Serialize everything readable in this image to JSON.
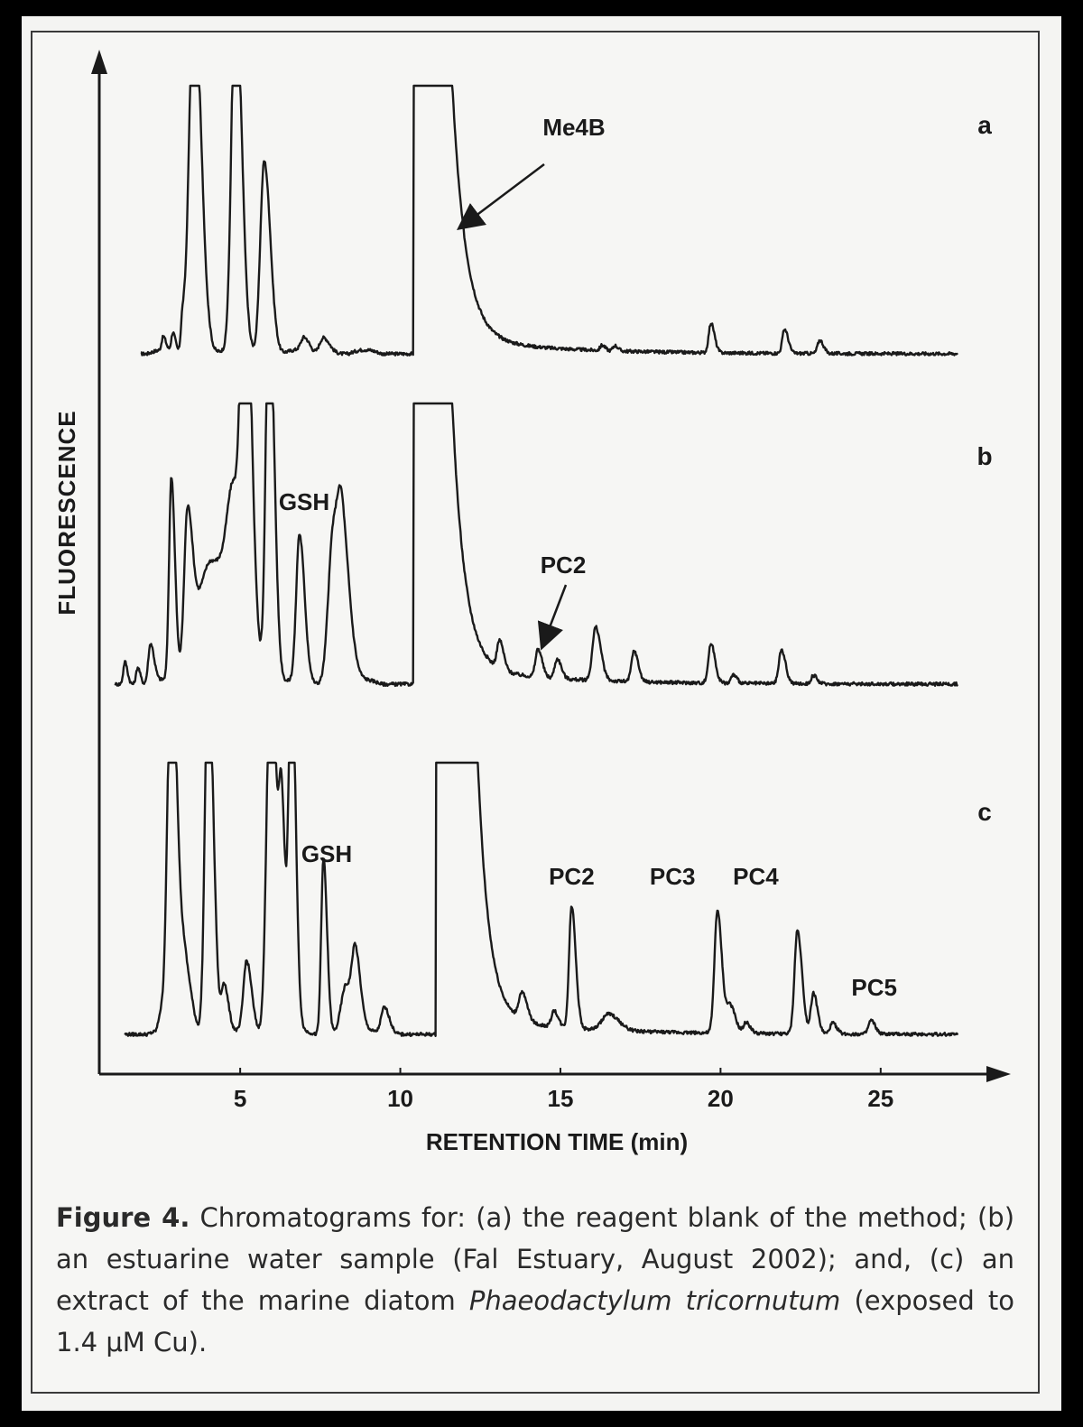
{
  "chart_data": {
    "type": "line",
    "ylabel": "FLUORESCENCE",
    "xlabel": "RETENTION TIME (min)",
    "xticks": [
      5,
      10,
      15,
      20,
      25
    ],
    "xlim": [
      0.6,
      28.5
    ],
    "panels": [
      {
        "id": "a",
        "label": "a",
        "x_start": 1.9,
        "x_end": 27.4,
        "baseline": 0.0,
        "peaks": [
          {
            "x": 2.6,
            "h": 0.05,
            "w": 0.05
          },
          {
            "x": 2.9,
            "h": 0.07,
            "w": 0.05
          },
          {
            "x": 3.2,
            "h": 0.12,
            "w": 0.05
          },
          {
            "x": 3.55,
            "h": 1.0,
            "w": 0.14,
            "clip": true
          },
          {
            "x": 4.85,
            "h": 1.0,
            "w": 0.12,
            "clip": true
          },
          {
            "x": 5.75,
            "h": 0.72,
            "w": 0.12
          },
          {
            "x": 7.0,
            "h": 0.05,
            "w": 0.1
          },
          {
            "x": 7.6,
            "h": 0.06,
            "w": 0.12
          },
          {
            "x": 16.3,
            "h": 0.02,
            "w": 0.06
          },
          {
            "x": 16.7,
            "h": 0.02,
            "w": 0.06
          },
          {
            "x": 19.7,
            "h": 0.11,
            "w": 0.07
          },
          {
            "x": 22.0,
            "h": 0.09,
            "w": 0.07
          },
          {
            "x": 23.1,
            "h": 0.05,
            "w": 0.07
          }
        ],
        "solvent_peak": {
          "start": 10.4,
          "end": 11.6,
          "tail": 1.2
        },
        "annotations": [
          {
            "text": "Me4B",
            "x": 12.5,
            "arrow": true
          }
        ]
      },
      {
        "id": "b",
        "label": "b",
        "x_start": 1.1,
        "x_end": 27.4,
        "baseline": 0.0,
        "peaks": [
          {
            "x": 1.4,
            "h": 0.08,
            "w": 0.05
          },
          {
            "x": 1.8,
            "h": 0.06,
            "w": 0.05
          },
          {
            "x": 2.2,
            "h": 0.14,
            "w": 0.07
          },
          {
            "x": 2.85,
            "h": 0.72,
            "w": 0.07
          },
          {
            "x": 3.35,
            "h": 0.52,
            "w": 0.1
          },
          {
            "x": 4.1,
            "h": 0.44,
            "w": 0.45
          },
          {
            "x": 4.8,
            "h": 0.42,
            "w": 0.2
          },
          {
            "x": 5.15,
            "h": 1.0,
            "w": 0.12,
            "clip": true
          },
          {
            "x": 5.9,
            "h": 1.0,
            "w": 0.1,
            "clip": true
          },
          {
            "x": 6.85,
            "h": 0.52,
            "w": 0.1
          },
          {
            "x": 7.9,
            "h": 0.52,
            "w": 0.15
          },
          {
            "x": 8.2,
            "h": 0.42,
            "w": 0.15
          },
          {
            "x": 13.1,
            "h": 0.1,
            "w": 0.08
          },
          {
            "x": 14.3,
            "h": 0.1,
            "w": 0.08
          },
          {
            "x": 14.9,
            "h": 0.07,
            "w": 0.08
          },
          {
            "x": 16.1,
            "h": 0.19,
            "w": 0.1
          },
          {
            "x": 17.3,
            "h": 0.11,
            "w": 0.08
          },
          {
            "x": 19.7,
            "h": 0.14,
            "w": 0.08
          },
          {
            "x": 20.4,
            "h": 0.03,
            "w": 0.07
          },
          {
            "x": 21.9,
            "h": 0.12,
            "w": 0.08
          },
          {
            "x": 22.9,
            "h": 0.03,
            "w": 0.07
          }
        ],
        "solvent_peak": {
          "start": 10.4,
          "end": 11.6,
          "tail": 1.1
        },
        "annotations": [
          {
            "text": "GSH",
            "x": 6.85,
            "arrow": false
          },
          {
            "text": "PC2",
            "x": 15.0,
            "arrow": true
          }
        ]
      },
      {
        "id": "c",
        "label": "c",
        "x_start": 1.4,
        "x_end": 27.4,
        "baseline": 0.0,
        "peaks": [
          {
            "x": 2.5,
            "h": 0.05,
            "w": 0.06
          },
          {
            "x": 2.85,
            "h": 1.0,
            "w": 0.12,
            "clip": true
          },
          {
            "x": 3.3,
            "h": 0.22,
            "w": 0.12
          },
          {
            "x": 4.0,
            "h": 1.0,
            "w": 0.1,
            "clip": true
          },
          {
            "x": 4.5,
            "h": 0.17,
            "w": 0.08
          },
          {
            "x": 5.2,
            "h": 0.27,
            "w": 0.1
          },
          {
            "x": 5.95,
            "h": 1.0,
            "w": 0.12,
            "clip": true
          },
          {
            "x": 6.3,
            "h": 0.68,
            "w": 0.08
          },
          {
            "x": 6.6,
            "h": 1.0,
            "w": 0.08,
            "clip": true
          },
          {
            "x": 7.6,
            "h": 0.65,
            "w": 0.07
          },
          {
            "x": 8.3,
            "h": 0.18,
            "w": 0.15
          },
          {
            "x": 8.6,
            "h": 0.24,
            "w": 0.1
          },
          {
            "x": 9.5,
            "h": 0.1,
            "w": 0.1
          },
          {
            "x": 13.8,
            "h": 0.1,
            "w": 0.1
          },
          {
            "x": 14.8,
            "h": 0.06,
            "w": 0.08
          },
          {
            "x": 15.35,
            "h": 0.45,
            "w": 0.08
          },
          {
            "x": 16.5,
            "h": 0.06,
            "w": 0.2
          },
          {
            "x": 19.9,
            "h": 0.45,
            "w": 0.09
          },
          {
            "x": 20.3,
            "h": 0.1,
            "w": 0.1
          },
          {
            "x": 20.8,
            "h": 0.04,
            "w": 0.08
          },
          {
            "x": 22.4,
            "h": 0.38,
            "w": 0.09
          },
          {
            "x": 22.9,
            "h": 0.15,
            "w": 0.08
          },
          {
            "x": 23.5,
            "h": 0.04,
            "w": 0.08
          },
          {
            "x": 24.7,
            "h": 0.05,
            "w": 0.08
          }
        ],
        "solvent_peak": {
          "start": 11.1,
          "end": 12.4,
          "tail": 1.0
        },
        "annotations": [
          {
            "text": "GSH",
            "x": 7.6,
            "arrow": false
          },
          {
            "text": "PC2",
            "x": 15.35,
            "arrow": false
          },
          {
            "text": "PC3",
            "x": 18.5,
            "arrow": false
          },
          {
            "text": "PC4",
            "x": 21.1,
            "arrow": false
          },
          {
            "text": "PC5",
            "x": 24.8,
            "arrow": false
          }
        ]
      }
    ]
  },
  "caption": {
    "figure_label": "Figure 4.",
    "text_1": "Chromatograms for: (a) the reagent blank of the method; (b) an estuarine water sample (Fal Estuary, August 2002); and, (c) an extract of the marine diatom",
    "species": "Phaeodactylum tricornutum",
    "text_2": "(exposed to 1.4 μM Cu)."
  }
}
